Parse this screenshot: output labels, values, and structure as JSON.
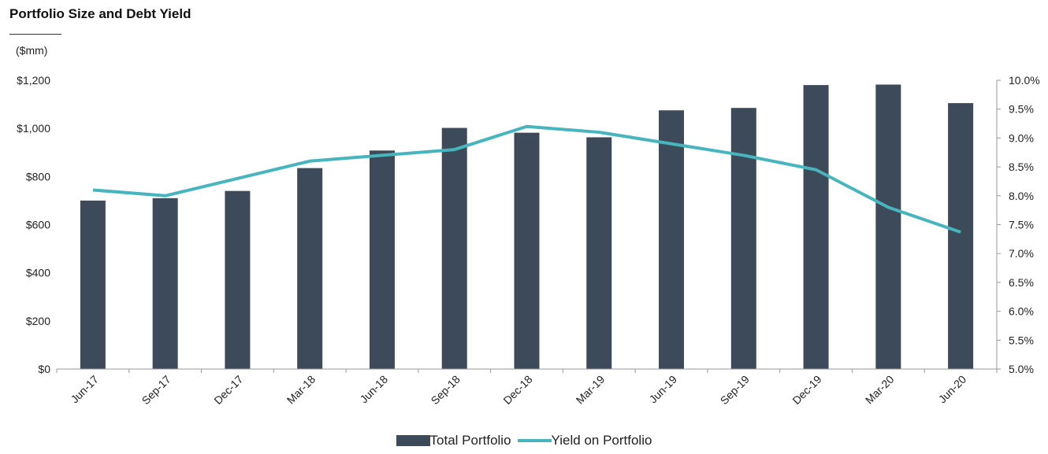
{
  "title": "Portfolio Size and Debt Yield",
  "unit_label": "($mm)",
  "colors": {
    "bar": "#3d4a5a",
    "line": "#47b5bd",
    "axis": "#9a9a9a"
  },
  "chart_data": {
    "type": "bar",
    "categories": [
      "Jun-17",
      "Sep-17",
      "Dec-17",
      "Mar-18",
      "Jun-18",
      "Sep-18",
      "Dec-18",
      "Mar-19",
      "Jun-19",
      "Sep-19",
      "Dec-19",
      "Mar-20",
      "Jun-20"
    ],
    "series": [
      {
        "name": "Total Portfolio",
        "type": "bar",
        "axis": "left",
        "values": [
          700,
          710,
          740,
          835,
          908,
          1002,
          982,
          963,
          1075,
          1085,
          1180,
          1182,
          1105
        ]
      },
      {
        "name": "Yield on Portfolio",
        "type": "line",
        "axis": "right",
        "values": [
          8.1,
          8.0,
          8.3,
          8.6,
          8.7,
          8.8,
          9.2,
          9.1,
          8.9,
          8.7,
          8.45,
          7.8,
          7.37
        ]
      }
    ],
    "y_left": {
      "min": 0,
      "max": 1200,
      "step": 200,
      "tick_labels": [
        "$0",
        "$200",
        "$400",
        "$600",
        "$800",
        "$1,000",
        "$1,200"
      ]
    },
    "y_right": {
      "min": 5.0,
      "max": 10.0,
      "step": 0.5,
      "tick_labels": [
        "5.0%",
        "5.5%",
        "6.0%",
        "6.5%",
        "7.0%",
        "7.5%",
        "8.0%",
        "8.5%",
        "9.0%",
        "9.5%",
        "10.0%"
      ]
    },
    "grid": false,
    "legend": "bottom-center"
  }
}
